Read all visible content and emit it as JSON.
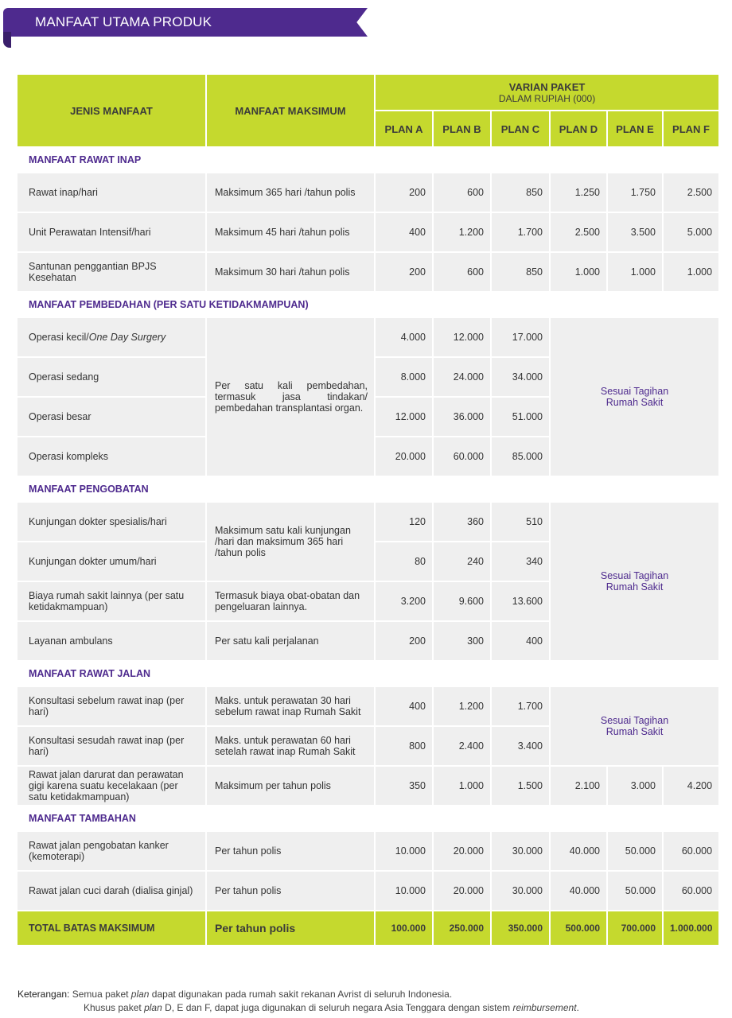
{
  "title": "MANFAAT UTAMA PRODUK",
  "header": {
    "jenis": "JENIS MANFAAT",
    "maks": "MANFAAT MAKSIMUM",
    "varian": "VARIAN PAKET",
    "varian_sub": "DALAM RUPIAH (000)",
    "plans": [
      "PLAN A",
      "PLAN B",
      "PLAN C",
      "PLAN D",
      "PLAN E",
      "PLAN F"
    ]
  },
  "colors": {
    "accent_green": "#c5d92e",
    "brand_purple": "#4e2a8e",
    "cell_gray": "#efefef"
  },
  "sections": [
    {
      "title": "MANFAAT RAWAT INAP",
      "rows": [
        {
          "jenis": "Rawat inap/hari",
          "maks": "Maksimum 365 hari /tahun polis",
          "plans": [
            "200",
            "600",
            "850",
            "1.250",
            "1.750",
            "2.500"
          ]
        },
        {
          "jenis": "Unit Perawatan Intensif/hari",
          "maks": "Maksimum 45 hari /tahun polis",
          "plans": [
            "400",
            "1.200",
            "1.700",
            "2.500",
            "3.500",
            "5.000"
          ]
        },
        {
          "jenis": "Santunan penggantian BPJS Kesehatan",
          "maks": "Maksimum 30 hari /tahun polis",
          "plans": [
            "200",
            "600",
            "850",
            "1.000",
            "1.000",
            "1.000"
          ]
        }
      ]
    },
    {
      "title": "MANFAAT PEMBEDAHAN (PER SATU KETIDAKMAMPUAN)",
      "maks_merged": {
        "text": "Per satu kali pembedahan, termasuk jasa tindakan/ pembedahan transplantasi organ.",
        "rows": [
          0,
          3
        ]
      },
      "def_merged": {
        "text": "Sesuai Tagihan Rumah Sakit",
        "rows": [
          0,
          3
        ]
      },
      "rows": [
        {
          "jenis": "Operasi kecil/",
          "jenis_italic": "One Day Surgery",
          "plans": [
            "4.000",
            "12.000",
            "17.000"
          ]
        },
        {
          "jenis": "Operasi sedang",
          "plans": [
            "8.000",
            "24.000",
            "34.000"
          ]
        },
        {
          "jenis": "Operasi besar",
          "plans": [
            "12.000",
            "36.000",
            "51.000"
          ]
        },
        {
          "jenis": "Operasi kompleks",
          "plans": [
            "20.000",
            "60.000",
            "85.000"
          ]
        }
      ]
    },
    {
      "title": "MANFAAT PENGOBATAN",
      "maks_merged": {
        "text": "Maksimum satu kali kunjungan /hari dan maksimum 365 hari /tahun polis",
        "rows": [
          0,
          1
        ]
      },
      "def_merged": {
        "text": "Sesuai Tagihan Rumah Sakit",
        "rows": [
          0,
          3
        ]
      },
      "rows": [
        {
          "jenis": "Kunjungan dokter spesialis/hari",
          "plans": [
            "120",
            "360",
            "510"
          ]
        },
        {
          "jenis": "Kunjungan dokter umum/hari",
          "plans": [
            "80",
            "240",
            "340"
          ]
        },
        {
          "jenis": "Biaya rumah sakit lainnya (per satu ketidakmampuan)",
          "maks": "Termasuk biaya obat-obatan dan pengeluaran lainnya.",
          "plans": [
            "3.200",
            "9.600",
            "13.600"
          ]
        },
        {
          "jenis": "Layanan ambulans",
          "maks": "Per satu kali perjalanan",
          "plans": [
            "200",
            "300",
            "400"
          ]
        }
      ]
    },
    {
      "title": "MANFAAT RAWAT JALAN",
      "def_merged": {
        "text": "Sesuai Tagihan Rumah Sakit",
        "rows": [
          0,
          1
        ]
      },
      "rows": [
        {
          "jenis": "Konsultasi sebelum rawat inap (per hari)",
          "maks": "Maks. untuk perawatan 30 hari sebelum rawat inap Rumah Sakit",
          "plans": [
            "400",
            "1.200",
            "1.700"
          ]
        },
        {
          "jenis": "Konsultasi sesudah rawat inap (per hari)",
          "maks": "Maks. untuk perawatan 60 hari setelah rawat inap Rumah Sakit",
          "plans": [
            "800",
            "2.400",
            "3.400"
          ]
        },
        {
          "jenis": "Rawat jalan darurat dan perawatan gigi karena suatu kecelakaan (per satu ketidakmampuan)",
          "maks": "Maksimum per tahun polis",
          "plans": [
            "350",
            "1.000",
            "1.500",
            "2.100",
            "3.000",
            "4.200"
          ]
        }
      ]
    },
    {
      "title": "MANFAAT TAMBAHAN",
      "rows": [
        {
          "jenis": "Rawat jalan pengobatan kanker (kemoterapi)",
          "maks": "Per tahun polis",
          "plans": [
            "10.000",
            "20.000",
            "30.000",
            "40.000",
            "50.000",
            "60.000"
          ]
        },
        {
          "jenis": "Rawat jalan cuci darah (dialisa ginjal)",
          "maks": "Per tahun polis",
          "plans": [
            "10.000",
            "20.000",
            "30.000",
            "40.000",
            "50.000",
            "60.000"
          ]
        }
      ]
    }
  ],
  "total": {
    "label": "TOTAL BATAS MAKSIMUM",
    "maks": "Per tahun polis",
    "plans": [
      "100.000",
      "250.000",
      "350.000",
      "500.000",
      "700.000",
      "1.000.000"
    ]
  },
  "note": {
    "label": "Keterangan:",
    "line1": [
      {
        "t": "Semua paket "
      },
      {
        "t": "plan",
        "i": true
      },
      {
        "t": " dapat digunakan pada rumah sakit rekanan Avrist di seluruh Indonesia."
      }
    ],
    "line2": [
      {
        "t": "Khusus paket "
      },
      {
        "t": "plan",
        "i": true
      },
      {
        "t": " D, E dan F, dapat juga digunakan di seluruh negara Asia Tenggara dengan sistem "
      },
      {
        "t": "reimbursement",
        "i": true
      },
      {
        "t": "."
      }
    ]
  }
}
